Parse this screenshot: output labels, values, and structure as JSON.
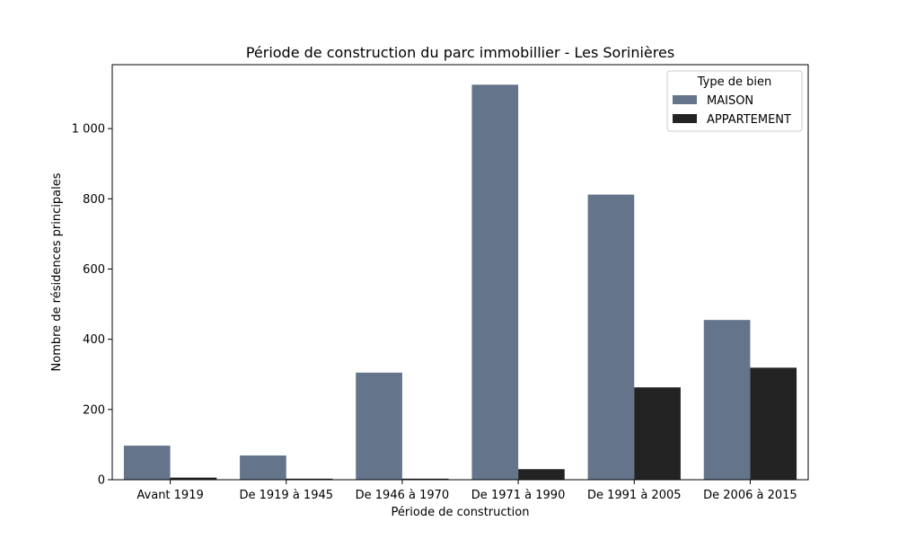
{
  "chart_data": {
    "type": "bar",
    "title": "Période de construction du parc immobillier - Les Sorinières",
    "xlabel": "Période de construction",
    "ylabel": "Nombre de résidences principales",
    "categories": [
      "Avant 1919",
      "De 1919 à 1945",
      "De 1946 à 1970",
      "De 1971 à 1990",
      "De 1991 à 2005",
      "De 2006 à 2015"
    ],
    "series": [
      {
        "name": "MAISON",
        "values": [
          97,
          69,
          305,
          1125,
          812,
          455
        ],
        "color": "#64758b"
      },
      {
        "name": "APPARTEMENT",
        "values": [
          6,
          3,
          3,
          30,
          263,
          319
        ],
        "color": "#232323"
      }
    ],
    "ylim": [
      0,
      1182
    ],
    "yticks": [
      0,
      200,
      400,
      600,
      800,
      1000
    ],
    "ytick_labels": [
      "0",
      "200",
      "400",
      "600",
      "800",
      "1 000"
    ],
    "grid": false,
    "legend": {
      "title": "Type de bien",
      "placement": "top-right"
    }
  }
}
